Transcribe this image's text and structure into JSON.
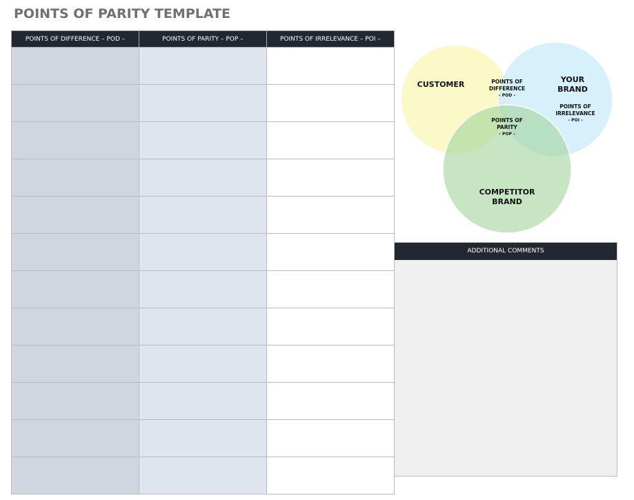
{
  "title": "POINTS OF PARITY TEMPLATE",
  "table": {
    "headers": [
      "POINTS OF DIFFERENCE – POD –",
      "POINTS OF PARITY – POP –",
      "POINTS OF IRRELEVANCE – POI –"
    ],
    "row_count": 12
  },
  "venn": {
    "customer": "CUSTOMER",
    "your_brand": [
      "YOUR",
      "BRAND"
    ],
    "competitor": [
      "COMPETITOR",
      "BRAND"
    ],
    "pod": [
      "POINTS OF",
      "DIFFERENCE",
      "– POD –"
    ],
    "pop": [
      "POINTS OF",
      "PARITY",
      "– POP –"
    ],
    "poi": [
      "POINTS OF",
      "IRRELEVANCE",
      "– POI –"
    ],
    "colors": {
      "customer": "#fbf9c8",
      "your_brand": "#c8ecfb",
      "competitor": "#a2d39b"
    }
  },
  "comments": {
    "header": "ADDITIONAL COMMENTS"
  }
}
